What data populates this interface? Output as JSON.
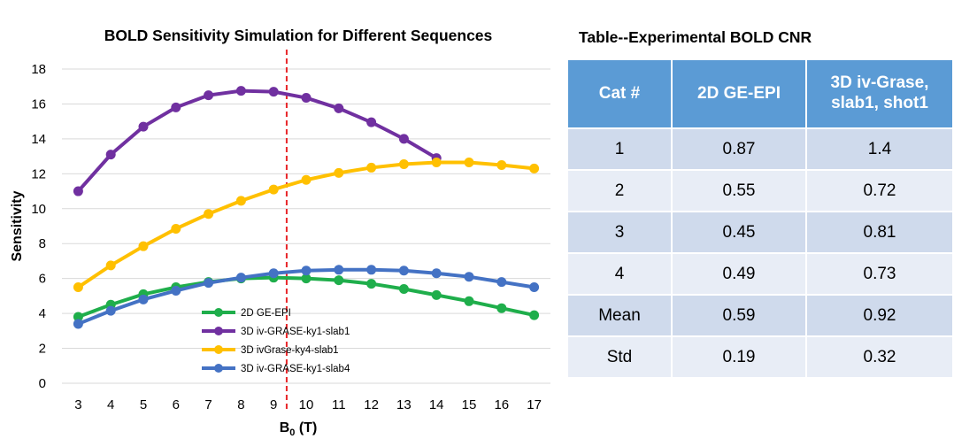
{
  "chart_data": {
    "type": "line",
    "title": "BOLD Sensitivity Simulation for Different Sequences",
    "xlabel_main": "B",
    "xlabel_sub": "0",
    "xlabel_unit": " (T)",
    "ylabel": "Sensitivity",
    "x": [
      3,
      4,
      5,
      6,
      7,
      8,
      9,
      10,
      11,
      12,
      13,
      14,
      15,
      16,
      17
    ],
    "xlim": [
      2.5,
      17.5
    ],
    "ylim": [
      0,
      18
    ],
    "yticks": [
      0,
      2,
      4,
      6,
      8,
      10,
      12,
      14,
      16,
      18
    ],
    "grid": true,
    "reference_line": {
      "x": 9.4,
      "color": "#e8262a",
      "style": "dashed"
    },
    "legend_position": "lower-center",
    "series": [
      {
        "name": "2D GE-EPI",
        "color": "#1fae4b",
        "values": [
          3.8,
          4.5,
          5.1,
          5.5,
          5.8,
          6.0,
          6.05,
          6.0,
          5.9,
          5.7,
          5.4,
          5.05,
          4.7,
          4.3,
          3.9
        ]
      },
      {
        "name": "3D iv-GRASE-ky1-slab1",
        "color": "#7030a0",
        "values": [
          11.0,
          13.1,
          14.7,
          15.8,
          16.5,
          16.75,
          16.7,
          16.35,
          15.75,
          14.95,
          14.0,
          12.9,
          null,
          null,
          null
        ]
      },
      {
        "name": "3D ivGrase-ky4-slab1",
        "color": "#ffc000",
        "values": [
          5.5,
          6.75,
          7.85,
          8.85,
          9.7,
          10.45,
          11.1,
          11.65,
          12.05,
          12.35,
          12.55,
          12.65,
          12.65,
          12.5,
          12.3
        ]
      },
      {
        "name": "3D iv-GRASE-ky1-slab4",
        "color": "#4472c4",
        "values": [
          3.4,
          4.15,
          4.8,
          5.3,
          5.75,
          6.05,
          6.3,
          6.45,
          6.5,
          6.5,
          6.45,
          6.3,
          6.1,
          5.8,
          5.5
        ]
      }
    ]
  },
  "table": {
    "title": "Table--Experimental BOLD CNR",
    "headers": [
      "Cat #",
      "2D GE-EPI",
      "3D iv-Grase, slab1, shot1"
    ],
    "rows": [
      [
        "1",
        "0.87",
        "1.4"
      ],
      [
        "2",
        "0.55",
        "0.72"
      ],
      [
        "3",
        "0.45",
        "0.81"
      ],
      [
        "4",
        "0.49",
        "0.73"
      ],
      [
        "Mean",
        "0.59",
        "0.92"
      ],
      [
        "Std",
        "0.19",
        "0.32"
      ]
    ]
  }
}
